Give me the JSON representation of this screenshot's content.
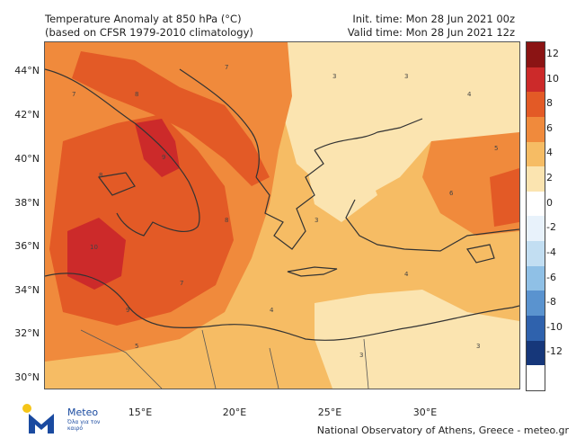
{
  "header": {
    "title_line1": "Temperature Anomaly at 850 hPa (°C)",
    "title_line2": "(based on CFSR 1979-2010 climatology)",
    "init_time": "Init. time: Mon 28 Jun 2021 00z",
    "valid_time": "Valid time: Mon 28 Jun 2021 12z"
  },
  "axes": {
    "lat_labels": [
      "44°N",
      "42°N",
      "40°N",
      "38°N",
      "36°N",
      "34°N",
      "32°N",
      "30°N"
    ],
    "lon_labels": [
      "15°E",
      "20°E",
      "25°E",
      "30°E"
    ]
  },
  "colorbar": {
    "labels": [
      "12",
      "10",
      "8",
      "6",
      "4",
      "2",
      "0",
      "-2",
      "-4",
      "-6",
      "-8",
      "-10",
      "-12"
    ],
    "colors": [
      "#8b1414",
      "#cc2a2a",
      "#e35a26",
      "#f08a3c",
      "#f6bc64",
      "#fbe4b0",
      "#ffffff",
      "#e8f2fb",
      "#c2def2",
      "#8fc0e6",
      "#5a93cf",
      "#2f62ad",
      "#16377a"
    ]
  },
  "map_data": {
    "sample_values": [
      "3",
      "4",
      "5",
      "6",
      "7",
      "8",
      "9",
      "10"
    ]
  },
  "logo": {
    "name": "Meteo",
    "subtitle": "Όλα για τον καιρό"
  },
  "footer": {
    "credit": "National Observatory of Athens, Greece - meteo.gr"
  }
}
